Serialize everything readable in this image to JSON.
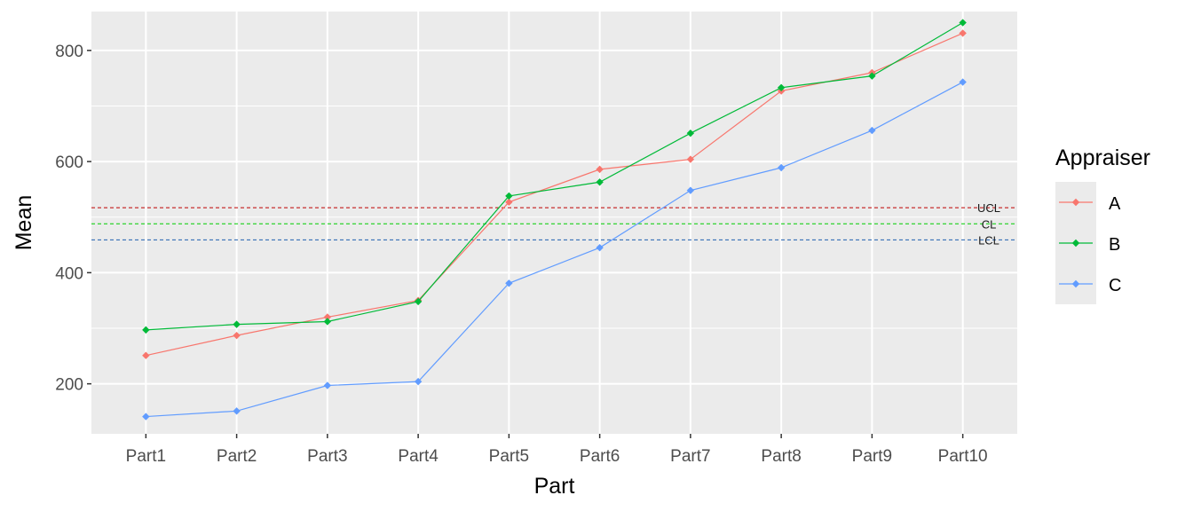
{
  "chart_data": {
    "type": "line",
    "xlabel": "Part",
    "ylabel": "Mean",
    "categories": [
      "Part1",
      "Part2",
      "Part3",
      "Part4",
      "Part5",
      "Part6",
      "Part7",
      "Part8",
      "Part9",
      "Part10"
    ],
    "ylim": [
      110,
      870
    ],
    "yticks": [
      200,
      400,
      600,
      800
    ],
    "grid": true,
    "legend": {
      "title": "Appraiser",
      "position": "right"
    },
    "series": [
      {
        "name": "A",
        "color": "#F8766D",
        "values": [
          251,
          287,
          320,
          350,
          527,
          586,
          604,
          727,
          760,
          831
        ]
      },
      {
        "name": "B",
        "color": "#00BA38",
        "values": [
          297,
          307,
          312,
          348,
          538,
          563,
          651,
          733,
          754,
          850
        ]
      },
      {
        "name": "C",
        "color": "#619CFF",
        "values": [
          141,
          151,
          197,
          204,
          381,
          445,
          548,
          589,
          656,
          743
        ]
      }
    ],
    "control_lines": [
      {
        "label": "UCL",
        "value": 517,
        "color": "#C00000"
      },
      {
        "label": "CL",
        "value": 488,
        "color": "#00CC00"
      },
      {
        "label": "LCL",
        "value": 459,
        "color": "#1F5FAF"
      }
    ]
  }
}
